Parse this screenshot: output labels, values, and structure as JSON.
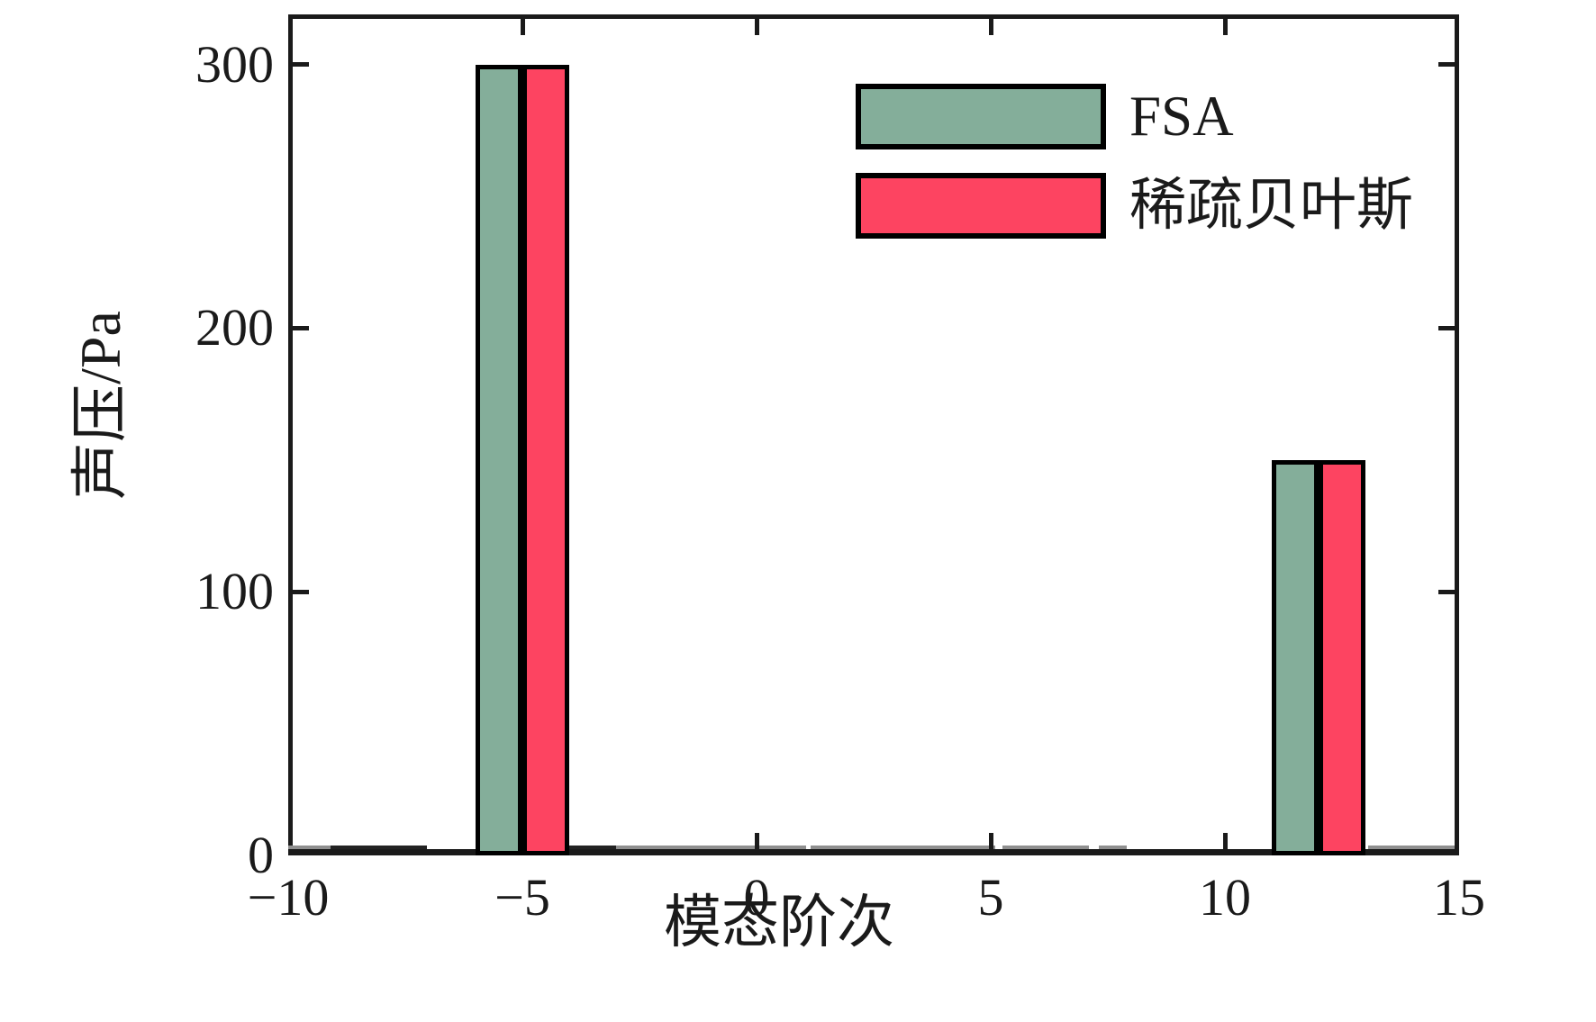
{
  "chart_data": {
    "type": "bar",
    "title": "",
    "xlabel": "模态阶次",
    "ylabel": "声压/Pa",
    "xlim": [
      -10,
      15
    ],
    "ylim": [
      0,
      319
    ],
    "x_ticks": [
      -10,
      -5,
      0,
      5,
      10,
      15
    ],
    "x_tick_labels": [
      "−10",
      "−5",
      "0",
      "5",
      "10",
      "15"
    ],
    "y_ticks": [
      0,
      100,
      200,
      300
    ],
    "y_tick_labels": [
      "0",
      "100",
      "200",
      "300"
    ],
    "categories": [
      -5,
      12
    ],
    "bar_width": 1,
    "series": [
      {
        "name": "FSA",
        "color": "#84AE9A",
        "offset": -0.5,
        "values": [
          300,
          150
        ]
      },
      {
        "name": "稀疏贝叶斯",
        "color": "#FD4461",
        "offset": 0.5,
        "values": [
          300,
          150
        ]
      }
    ],
    "bar_edge_color": "#000000",
    "legend_position": "upper-right",
    "grid": false,
    "baseline_segments": [
      {
        "from": -10.0,
        "to": -9.1,
        "tone": "mid"
      },
      {
        "from": -9.1,
        "to": -7.05,
        "tone": "dark"
      },
      {
        "from": -4.0,
        "to": -3.0,
        "tone": "dark"
      },
      {
        "from": -3.0,
        "to": 1.05,
        "tone": "mid"
      },
      {
        "from": 1.15,
        "to": 5.1,
        "tone": "mid"
      },
      {
        "from": 5.25,
        "to": 7.1,
        "tone": "mid"
      },
      {
        "from": 7.3,
        "to": 7.9,
        "tone": "mid"
      },
      {
        "from": 13.05,
        "to": 14.9,
        "tone": "mid"
      }
    ],
    "colors": {
      "axis": "#1a1a1a",
      "text": "#1a1a1a",
      "strip_dark": "#222222",
      "strip_mid": "#8f8f8f",
      "background": "#ffffff"
    }
  }
}
